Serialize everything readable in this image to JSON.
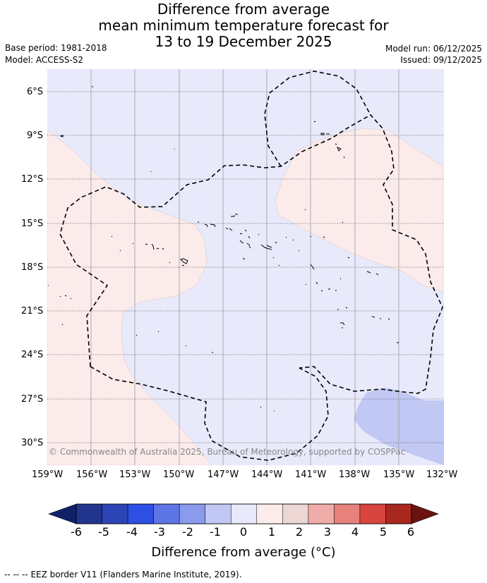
{
  "title": {
    "line1": "Difference from average",
    "line2": "mean minimum temperature forecast for",
    "line3": "13 to 19 December 2025"
  },
  "meta": {
    "base_period": "Base period: 1981-2018",
    "model": "Model: ACCESS-S2",
    "model_run": "Model run: 06/12/2025",
    "issued": "Issued: 09/12/2025"
  },
  "map": {
    "lat_labels": [
      "6°S",
      "9°S",
      "12°S",
      "15°S",
      "18°S",
      "21°S",
      "24°S",
      "27°S",
      "30°S"
    ],
    "lon_labels": [
      "159°W",
      "156°W",
      "153°W",
      "150°W",
      "147°W",
      "144°W",
      "141°W",
      "138°W",
      "135°W",
      "132°W"
    ],
    "copyright": "© Commonwealth of Australia 2025, Bureau of Meteorology, supported by COSPPac",
    "colors": {
      "background_neg0_1": "#e8eafb",
      "positive_0_1": "#fbeceb",
      "negative_1_2": "#c1c8f4"
    }
  },
  "colorbar": {
    "ticks": [
      "-6",
      "-5",
      "-4",
      "-3",
      "-2",
      "-1",
      "0",
      "1",
      "2",
      "3",
      "4",
      "5",
      "6"
    ],
    "colors": [
      "#22358e",
      "#2c44b6",
      "#2e4fe4",
      "#5e75e5",
      "#8a9bee",
      "#c1c8f4",
      "#e8eafb",
      "#fbeceb",
      "#ecd7d5",
      "#f0aca8",
      "#e6817b",
      "#d8453e",
      "#a8271f"
    ],
    "under_color": "#11206a",
    "over_color": "#6b1310",
    "label": "Difference from average (°C)"
  },
  "footer": {
    "legend_text": "EEZ border V11 (Flanders Marine Institute, 2019).",
    "legend_marker": "--  --  --"
  }
}
